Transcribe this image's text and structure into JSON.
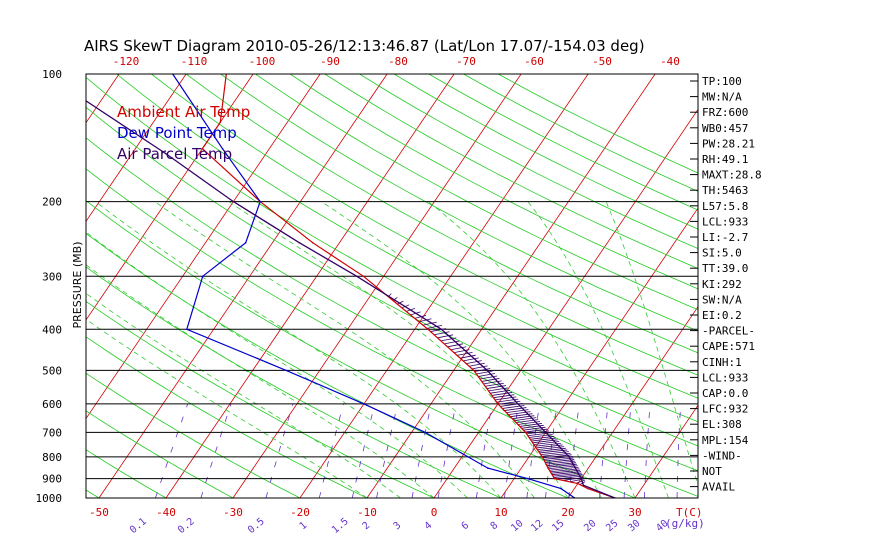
{
  "chart_data": {
    "type": "line",
    "title": "AIRS SkewT Diagram 2010-05-26/12:13:46.87 (Lat/Lon 17.07/-154.03 deg)",
    "ylabel": "PRESSURE (MB)",
    "x_unit_label": "T(C)",
    "mixing_ratio_unit": "(g/kg)",
    "y_scale": "log",
    "ylim": [
      1000,
      100
    ],
    "xlim_bottom": [
      -50,
      30
    ],
    "pressure_ticks": [
      100,
      200,
      300,
      400,
      500,
      600,
      700,
      800,
      900,
      1000
    ],
    "bottom_temp_ticks": [
      -50,
      -40,
      -30,
      -20,
      -10,
      0,
      10,
      20,
      30
    ],
    "top_temp_ticks": [
      -120,
      -110,
      -100,
      -90,
      -80,
      -70,
      -60,
      -50,
      -40
    ],
    "mixing_ratio_labels": [
      "0.1",
      "0.2",
      "0.5",
      "1",
      "1.5",
      "2",
      "3",
      "4",
      "6",
      "8",
      "10",
      "12",
      "15",
      "20",
      "25",
      "30",
      "40"
    ],
    "legend": [
      {
        "name": "Ambient Air Temp",
        "color": "#d00000"
      },
      {
        "name": "Dew Point Temp",
        "color": "#0000cc"
      },
      {
        "name": "Air Parcel Temp",
        "color": "#330066"
      }
    ],
    "series": [
      {
        "name": "Ambient Air Temp",
        "color": "#d00000",
        "points": [
          {
            "p": 1000,
            "t": 27
          },
          {
            "p": 950,
            "t": 22
          },
          {
            "p": 925,
            "t": 20
          },
          {
            "p": 900,
            "t": 16
          },
          {
            "p": 850,
            "t": 14
          },
          {
            "p": 800,
            "t": 12
          },
          {
            "p": 700,
            "t": 7
          },
          {
            "p": 600,
            "t": 0
          },
          {
            "p": 500,
            "t": -7
          },
          {
            "p": 400,
            "t": -18
          },
          {
            "p": 300,
            "t": -33
          },
          {
            "p": 250,
            "t": -44
          },
          {
            "p": 200,
            "t": -56
          },
          {
            "p": 150,
            "t": -70
          },
          {
            "p": 130,
            "t": -70
          },
          {
            "p": 100,
            "t": -74
          }
        ]
      },
      {
        "name": "Dew Point Temp",
        "color": "#0000cc",
        "points": [
          {
            "p": 1000,
            "t": 21
          },
          {
            "p": 950,
            "t": 18
          },
          {
            "p": 900,
            "t": 12
          },
          {
            "p": 850,
            "t": 5
          },
          {
            "p": 700,
            "t": -8
          },
          {
            "p": 600,
            "t": -20
          },
          {
            "p": 500,
            "t": -35
          },
          {
            "p": 400,
            "t": -54
          },
          {
            "p": 300,
            "t": -57
          },
          {
            "p": 250,
            "t": -54
          },
          {
            "p": 200,
            "t": -56
          },
          {
            "p": 150,
            "t": -67
          },
          {
            "p": 100,
            "t": -82
          }
        ]
      },
      {
        "name": "Air Parcel Temp",
        "color": "#330066",
        "points": [
          {
            "p": 1000,
            "t": 27
          },
          {
            "p": 933,
            "t": 21
          },
          {
            "p": 900,
            "t": 20
          },
          {
            "p": 800,
            "t": 16
          },
          {
            "p": 700,
            "t": 10
          },
          {
            "p": 600,
            "t": 3
          },
          {
            "p": 500,
            "t": -5
          },
          {
            "p": 400,
            "t": -16
          },
          {
            "p": 300,
            "t": -34
          },
          {
            "p": 250,
            "t": -46
          },
          {
            "p": 200,
            "t": -60
          },
          {
            "p": 154,
            "t": -75
          },
          {
            "p": 100,
            "t": -101
          }
        ]
      }
    ],
    "indices": [
      "TP:100",
      "MW:N/A",
      "FRZ:600",
      "WB0:457",
      "PW:28.21",
      "RH:49.1",
      "MAXT:28.8",
      "TH:5463",
      "L57:5.8",
      "LCL:933",
      "LI:-2.7",
      "SI:5.0",
      "TT:39.0",
      "KI:292",
      "SW:N/A",
      "EI:0.2",
      "-PARCEL-",
      "CAPE:571",
      "CINH:1",
      "LCL:933",
      "CAP:0.0",
      "LFC:932",
      "EL:308",
      "MPL:154",
      "-WIND-",
      "NOT",
      "AVAIL"
    ],
    "grid": true,
    "legend_position": "top-left"
  }
}
